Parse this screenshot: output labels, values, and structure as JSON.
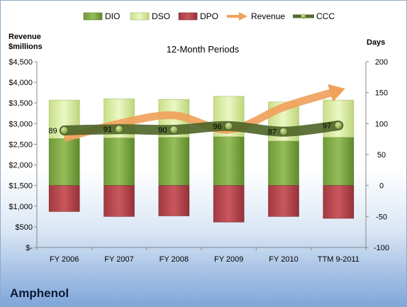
{
  "company": "Amphenol",
  "chart_data": {
    "type": "bar",
    "title": "12-Month Periods",
    "left_axis_title": [
      "Revenue",
      "$millions"
    ],
    "right_axis_title": "Days",
    "categories": [
      "FY 2006",
      "FY 2007",
      "FY 2008",
      "FY 2009",
      "FY 2010",
      "TTM 9-2011"
    ],
    "left_ylim": [
      0,
      4500
    ],
    "left_ticks": [
      0,
      500,
      1000,
      1500,
      2000,
      2500,
      3000,
      3500,
      4000,
      4500
    ],
    "left_tick_labels": [
      "$-",
      "$500",
      "$1,000",
      "$1,500",
      "$2,000",
      "$2,500",
      "$3,000",
      "$3,500",
      "$4,000",
      "$4,500"
    ],
    "right_ylim": [
      -100,
      200
    ],
    "right_ticks": [
      -100,
      -50,
      0,
      50,
      100,
      150,
      200
    ],
    "right_tick_labels": [
      "-100",
      "-50",
      "0",
      "50",
      "100",
      "150",
      "200"
    ],
    "legend_position": "top",
    "series": [
      {
        "name": "DIO",
        "axis": "right",
        "kind": "stacked-bar",
        "color": "#7ea64a",
        "values": [
          76,
          77,
          78,
          79,
          72,
          78
        ]
      },
      {
        "name": "DSO",
        "axis": "right",
        "kind": "stacked-bar",
        "color": "#d9ec9f",
        "values": [
          62,
          63,
          61,
          65,
          63,
          60
        ]
      },
      {
        "name": "DPO",
        "axis": "right",
        "kind": "stacked-bar-negative",
        "color": "#b5444a",
        "values": [
          -42,
          -50,
          -49,
          -59,
          -50,
          -53
        ]
      },
      {
        "name": "Revenue",
        "axis": "left",
        "kind": "arrow-line",
        "color": "#f0a25c",
        "values": [
          2650,
          3000,
          3200,
          2850,
          3400,
          3800
        ]
      },
      {
        "name": "CCC",
        "axis": "right",
        "kind": "line-markers",
        "color": "#556b2f",
        "values": [
          89,
          91,
          90,
          96,
          87,
          97
        ]
      }
    ],
    "data_labels": [
      "89",
      "91",
      "90",
      "96",
      "87",
      "97"
    ]
  }
}
